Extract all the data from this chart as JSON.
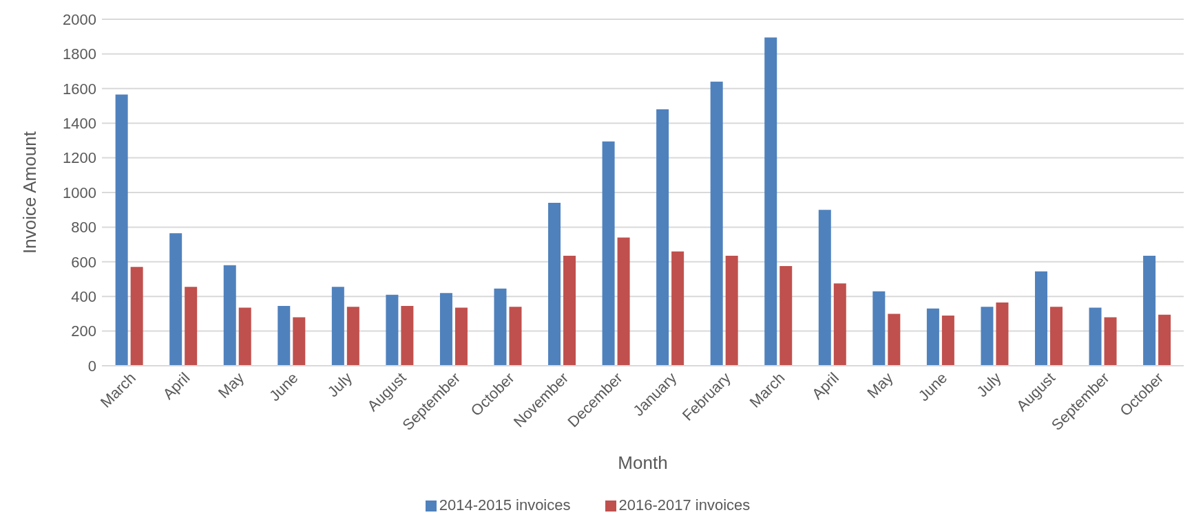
{
  "chart_data": {
    "type": "bar",
    "xlabel": "Month",
    "ylabel": "Invoice Amount",
    "categories": [
      "March",
      "April",
      "May",
      "June",
      "July",
      "August",
      "September",
      "October",
      "November",
      "December",
      "January",
      "February",
      "March",
      "April",
      "May",
      "June",
      "July",
      "August",
      "September",
      "October"
    ],
    "series": [
      {
        "name": "2014-2015 invoices",
        "color": "#4f81bd",
        "values": [
          1565,
          765,
          580,
          345,
          455,
          410,
          420,
          445,
          940,
          1295,
          1480,
          1640,
          1895,
          900,
          430,
          330,
          340,
          545,
          335,
          635
        ]
      },
      {
        "name": "2016-2017 invoices",
        "color": "#c0504d",
        "values": [
          570,
          455,
          335,
          280,
          340,
          345,
          335,
          340,
          635,
          740,
          660,
          635,
          575,
          475,
          300,
          290,
          365,
          340,
          280,
          295
        ]
      }
    ],
    "ylim": [
      0,
      2000
    ],
    "yticks": [
      0,
      200,
      400,
      600,
      800,
      1000,
      1200,
      1400,
      1600,
      1800,
      2000
    ],
    "grid": "y",
    "legend": "bottom"
  }
}
